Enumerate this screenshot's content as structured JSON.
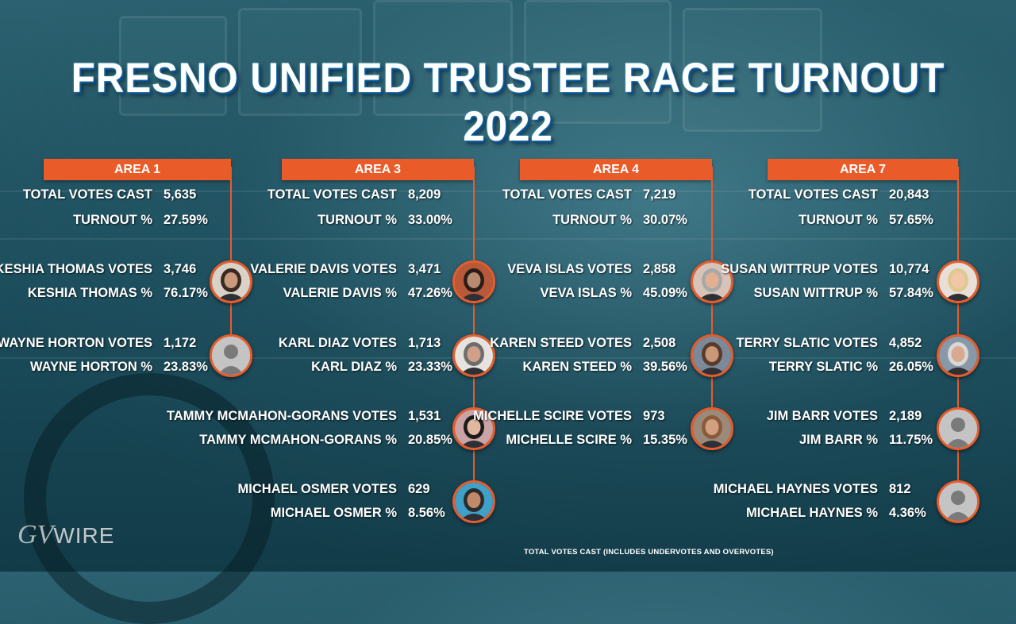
{
  "title": "FRESNO UNIFIED TRUSTEE RACE TURNOUT 2022",
  "areas": [
    {
      "name": "AREA 1",
      "total_label": "TOTAL VOTES CAST",
      "total_value": "5,635",
      "turnout_label": "TURNOUT %",
      "turnout_value": "27.59%",
      "candidates": [
        {
          "votes_label": "KESHIA THOMAS VOTES",
          "votes": "3,746",
          "pct_label": "KESHIA THOMAS %",
          "pct": "76.17%",
          "photo": "photo"
        },
        {
          "votes_label": "WAYNE HORTON VOTES",
          "votes": "1,172",
          "pct_label": "WAYNE HORTON %",
          "pct": "23.83%",
          "photo": "default-avatar"
        }
      ]
    },
    {
      "name": "AREA 3",
      "total_label": "TOTAL VOTES CAST",
      "total_value": "8,209",
      "turnout_label": "TURNOUT %",
      "turnout_value": "33.00%",
      "candidates": [
        {
          "votes_label": "VALERIE DAVIS VOTES",
          "votes": "3,471",
          "pct_label": "VALERIE DAVIS %",
          "pct": "47.26%",
          "photo": "photo"
        },
        {
          "votes_label": "KARL DIAZ VOTES",
          "votes": "1,713",
          "pct_label": "KARL DIAZ %",
          "pct": "23.33%",
          "photo": "photo"
        },
        {
          "votes_label": "TAMMY MCMAHON-GORANS VOTES",
          "votes": "1,531",
          "pct_label": "TAMMY MCMAHON-GORANS %",
          "pct": "20.85%",
          "photo": "photo"
        },
        {
          "votes_label": "MICHAEL OSMER VOTES",
          "votes": "629",
          "pct_label": "MICHAEL OSMER %",
          "pct": "8.56%",
          "photo": "photo"
        }
      ]
    },
    {
      "name": "AREA 4",
      "total_label": "TOTAL VOTES CAST",
      "total_value": "7,219",
      "turnout_label": "TURNOUT %",
      "turnout_value": "30.07%",
      "candidates": [
        {
          "votes_label": "VEVA ISLAS VOTES",
          "votes": "2,858",
          "pct_label": "VEVA ISLAS %",
          "pct": "45.09%",
          "photo": "photo"
        },
        {
          "votes_label": "KAREN STEED VOTES",
          "votes": "2,508",
          "pct_label": "KAREN STEED %",
          "pct": "39.56%",
          "photo": "photo"
        },
        {
          "votes_label": "MICHELLE SCIRE VOTES",
          "votes": "973",
          "pct_label": "MICHELLE SCIRE %",
          "pct": "15.35%",
          "photo": "photo"
        }
      ]
    },
    {
      "name": "AREA 7",
      "total_label": "TOTAL VOTES CAST",
      "total_value": "20,843",
      "turnout_label": "TURNOUT %",
      "turnout_value": "57.65%",
      "candidates": [
        {
          "votes_label": "SUSAN WITTRUP VOTES",
          "votes": "10,774",
          "pct_label": "SUSAN WITTRUP %",
          "pct": "57.84%",
          "photo": "photo"
        },
        {
          "votes_label": "TERRY SLATIC VOTES",
          "votes": "4,852",
          "pct_label": "TERRY SLATIC %",
          "pct": "26.05%",
          "photo": "photo"
        },
        {
          "votes_label": "JIM BARR VOTES",
          "votes": "2,189",
          "pct_label": "JIM BARR %",
          "pct": "11.75%",
          "photo": "default-avatar"
        },
        {
          "votes_label": "MICHAEL HAYNES VOTES",
          "votes": "812",
          "pct_label": "MICHAEL HAYNES %",
          "pct": "4.36%",
          "photo": "default-avatar"
        }
      ]
    }
  ],
  "footnote": "TOTAL VOTES CAST (INCLUDES UNDERVOTES AND OVERVOTES)",
  "logo": "GV WIRE",
  "colors": {
    "accent": "#e95c2a",
    "background": "#1d4f5e",
    "text": "#ffffff"
  }
}
